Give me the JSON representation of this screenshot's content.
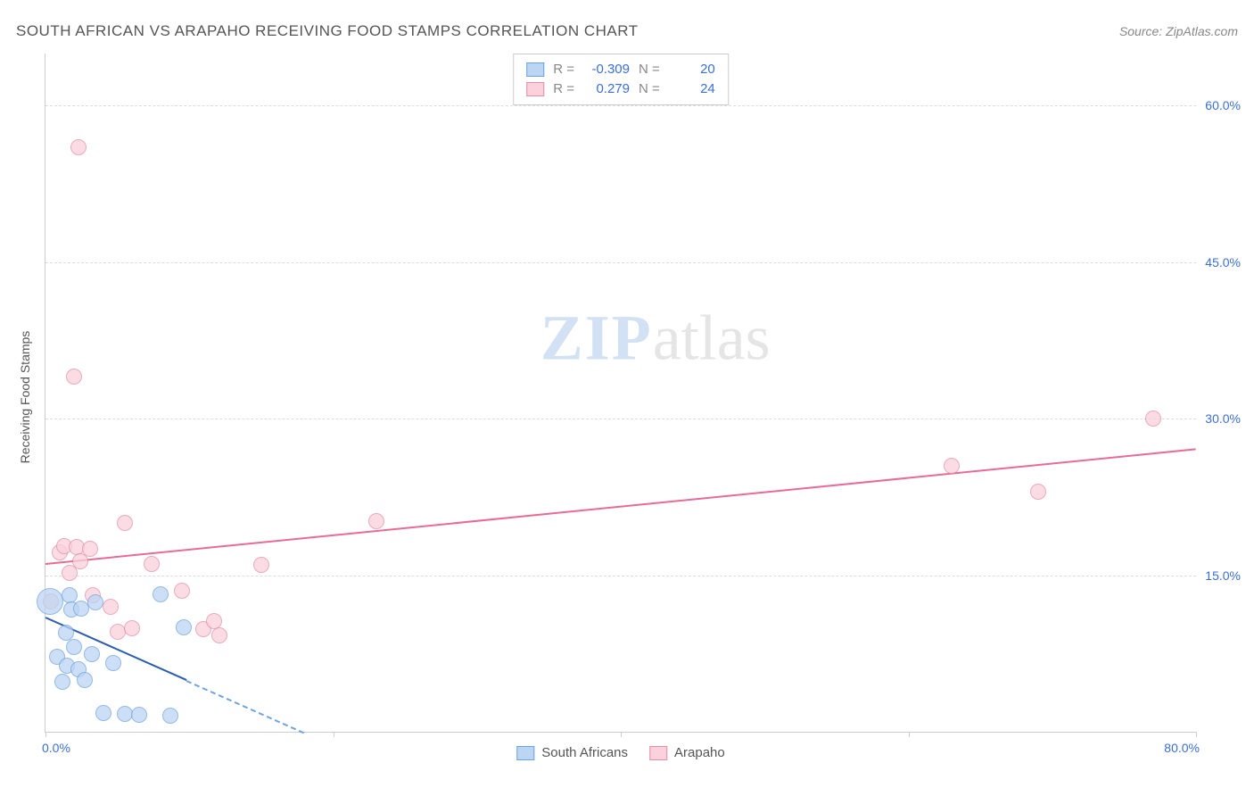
{
  "header": {
    "title": "SOUTH AFRICAN VS ARAPAHO RECEIVING FOOD STAMPS CORRELATION CHART",
    "source": "Source: ZipAtlas.com"
  },
  "chart": {
    "type": "scatter",
    "ylabel": "Receiving Food Stamps",
    "xlim": [
      0,
      80
    ],
    "ylim": [
      0,
      65
    ],
    "x_start_label": "0.0%",
    "x_end_label": "80.0%",
    "x_ticks_at": [
      0,
      20,
      40,
      60,
      80
    ],
    "y_gridlines": [
      {
        "value": 15,
        "label": "15.0%"
      },
      {
        "value": 30,
        "label": "30.0%"
      },
      {
        "value": 45,
        "label": "45.0%"
      },
      {
        "value": 60,
        "label": "60.0%"
      }
    ],
    "colors": {
      "series_a_fill": "#bcd5f3",
      "series_a_stroke": "#6fa3e0",
      "series_a_line": "#2a5db0",
      "series_b_fill": "#fad1dc",
      "series_b_stroke": "#e38fa6",
      "series_b_line": "#e86b94",
      "axis_text": "#3b6fd6",
      "grid": "#dddddd",
      "background": "#ffffff"
    },
    "point_radius": 9,
    "point_radius_large": 15,
    "series_a": {
      "name": "South Africans",
      "R": "-0.309",
      "N": "20",
      "trend": {
        "x1": 0,
        "y1": 11.0,
        "x2": 18,
        "y2": 0.0
      },
      "points": [
        {
          "x": 0.3,
          "y": 12.5,
          "r": 15
        },
        {
          "x": 0.8,
          "y": 7.2
        },
        {
          "x": 1.2,
          "y": 4.8
        },
        {
          "x": 1.4,
          "y": 9.5
        },
        {
          "x": 1.5,
          "y": 6.3
        },
        {
          "x": 1.7,
          "y": 13.1
        },
        {
          "x": 1.8,
          "y": 11.7
        },
        {
          "x": 2.0,
          "y": 8.1
        },
        {
          "x": 2.3,
          "y": 6.0
        },
        {
          "x": 2.5,
          "y": 11.8
        },
        {
          "x": 2.7,
          "y": 5.0
        },
        {
          "x": 3.2,
          "y": 7.4
        },
        {
          "x": 3.5,
          "y": 12.4
        },
        {
          "x": 4.0,
          "y": 1.8
        },
        {
          "x": 4.7,
          "y": 6.6
        },
        {
          "x": 5.5,
          "y": 1.7
        },
        {
          "x": 6.5,
          "y": 1.6
        },
        {
          "x": 8.0,
          "y": 13.2
        },
        {
          "x": 8.7,
          "y": 1.5
        },
        {
          "x": 9.6,
          "y": 10.0
        }
      ]
    },
    "series_b": {
      "name": "Arapaho",
      "R": "0.279",
      "N": "24",
      "trend": {
        "x1": 0,
        "y1": 16.2,
        "x2": 80,
        "y2": 27.2
      },
      "points": [
        {
          "x": 0.4,
          "y": 12.5
        },
        {
          "x": 1.0,
          "y": 17.2
        },
        {
          "x": 1.3,
          "y": 17.8
        },
        {
          "x": 1.7,
          "y": 15.2
        },
        {
          "x": 2.0,
          "y": 34.0
        },
        {
          "x": 2.2,
          "y": 17.7
        },
        {
          "x": 2.3,
          "y": 56.0
        },
        {
          "x": 2.4,
          "y": 16.3
        },
        {
          "x": 3.1,
          "y": 17.5
        },
        {
          "x": 3.3,
          "y": 13.1
        },
        {
          "x": 4.5,
          "y": 12.0
        },
        {
          "x": 5.0,
          "y": 9.6
        },
        {
          "x": 5.5,
          "y": 20.0
        },
        {
          "x": 6.0,
          "y": 9.9
        },
        {
          "x": 7.4,
          "y": 16.1
        },
        {
          "x": 9.5,
          "y": 13.5
        },
        {
          "x": 11.0,
          "y": 9.8
        },
        {
          "x": 11.7,
          "y": 10.6
        },
        {
          "x": 12.1,
          "y": 9.2
        },
        {
          "x": 15.0,
          "y": 16.0
        },
        {
          "x": 23.0,
          "y": 20.2
        },
        {
          "x": 63.0,
          "y": 25.5
        },
        {
          "x": 69.0,
          "y": 23.0
        },
        {
          "x": 77.0,
          "y": 30.0
        }
      ]
    }
  },
  "watermark": {
    "part1": "ZIP",
    "part2": "atlas"
  },
  "legend": {
    "a": "South Africans",
    "b": "Arapaho"
  },
  "stats_labels": {
    "R": "R = ",
    "N": "N = "
  }
}
